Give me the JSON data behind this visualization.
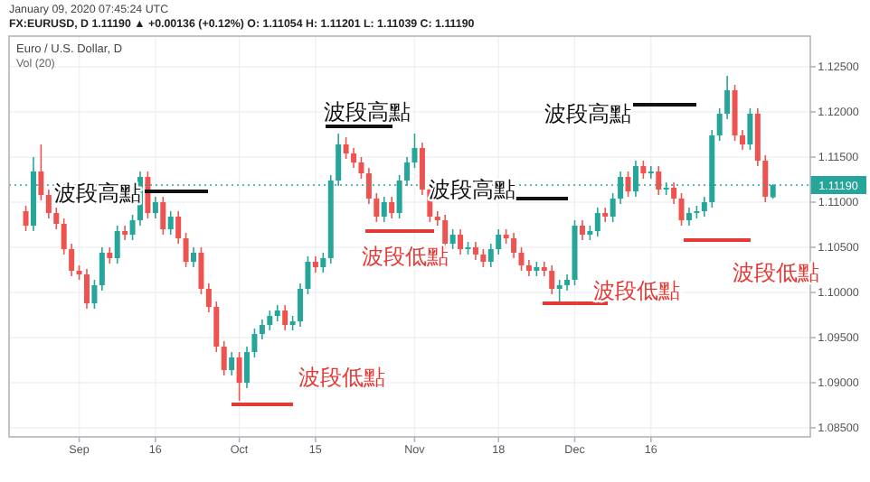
{
  "chart_data": {
    "type": "candlestick",
    "title": "Euro / U.S. Dollar, D",
    "subtitle": "FX:EURUSD, D 1.11190 ▲ +0.00136 (+0.12%) O: 1.11054 H: 1.11201 L: 1.11039 C: 1.11190",
    "categories": [
      null,
      null,
      null,
      null,
      null,
      null,
      null,
      "Sep",
      null,
      null,
      null,
      null,
      null,
      null,
      null,
      null,
      null,
      "16",
      null,
      null,
      null,
      null,
      null,
      null,
      null,
      null,
      null,
      null,
      "Oct",
      null,
      null,
      null,
      null,
      null,
      null,
      null,
      null,
      null,
      "15",
      null,
      null,
      null,
      null,
      null,
      null,
      null,
      null,
      null,
      null,
      null,
      null,
      "Nov",
      null,
      null,
      null,
      null,
      null,
      null,
      null,
      null,
      null,
      null,
      "18",
      null,
      null,
      null,
      null,
      null,
      null,
      null,
      null,
      null,
      "Dec",
      null,
      null,
      null,
      null,
      null,
      null,
      null,
      null,
      null,
      "16",
      null,
      null,
      null,
      null,
      null,
      null,
      null,
      null,
      null,
      null,
      null,
      null,
      null,
      null,
      null,
      null
    ],
    "ohlc": [
      [
        1.109,
        1.1096,
        1.1068,
        1.1074
      ],
      [
        1.1074,
        1.115,
        1.1068,
        1.1134
      ],
      [
        1.1134,
        1.1164,
        1.1102,
        1.1108
      ],
      [
        1.1108,
        1.1114,
        1.1082,
        1.1088
      ],
      [
        1.1088,
        1.1094,
        1.107,
        1.1076
      ],
      [
        1.1076,
        1.1082,
        1.1042,
        1.1048
      ],
      [
        1.1048,
        1.1054,
        1.1018,
        1.1024
      ],
      [
        1.1024,
        1.103,
        1.1014,
        1.102
      ],
      [
        1.102,
        1.1026,
        1.0982,
        1.0988
      ],
      [
        1.0988,
        1.1014,
        1.0982,
        1.1008
      ],
      [
        1.1008,
        1.105,
        1.1002,
        1.1044
      ],
      [
        1.1044,
        1.105,
        1.1032,
        1.1038
      ],
      [
        1.1038,
        1.1074,
        1.1032,
        1.1068
      ],
      [
        1.1068,
        1.1074,
        1.1058,
        1.1064
      ],
      [
        1.1064,
        1.1086,
        1.1058,
        1.108
      ],
      [
        1.108,
        1.1134,
        1.1074,
        1.1128
      ],
      [
        1.1128,
        1.1134,
        1.1082,
        1.1088
      ],
      [
        1.1088,
        1.1106,
        1.1082,
        1.11
      ],
      [
        1.11,
        1.1106,
        1.1064,
        1.107
      ],
      [
        1.107,
        1.109,
        1.1064,
        1.1084
      ],
      [
        1.1084,
        1.109,
        1.1054,
        1.106
      ],
      [
        1.106,
        1.1066,
        1.1028,
        1.1034
      ],
      [
        1.1034,
        1.105,
        1.1028,
        1.1044
      ],
      [
        1.1044,
        1.105,
        1.0998,
        1.1004
      ],
      [
        1.1004,
        1.101,
        1.0978,
        1.0984
      ],
      [
        1.0984,
        1.099,
        1.0934,
        1.094
      ],
      [
        1.094,
        1.0946,
        1.0908,
        1.0914
      ],
      [
        1.0914,
        1.0934,
        1.0908,
        1.0928
      ],
      [
        1.0928,
        1.0934,
        1.088,
        1.09
      ],
      [
        1.09,
        1.094,
        1.0894,
        1.0934
      ],
      [
        1.0934,
        1.096,
        1.0928,
        1.0954
      ],
      [
        1.0954,
        1.097,
        1.0948,
        1.0964
      ],
      [
        1.0964,
        1.098,
        1.0958,
        1.0974
      ],
      [
        1.0974,
        1.0986,
        1.0968,
        1.098
      ],
      [
        1.098,
        1.0986,
        1.0958,
        1.0964
      ],
      [
        1.0964,
        1.0974,
        1.0958,
        1.0968
      ],
      [
        1.0968,
        1.101,
        1.0962,
        1.1004
      ],
      [
        1.1004,
        1.104,
        1.0998,
        1.1034
      ],
      [
        1.1034,
        1.104,
        1.1022,
        1.1028
      ],
      [
        1.1028,
        1.1044,
        1.1022,
        1.1038
      ],
      [
        1.1038,
        1.113,
        1.1032,
        1.1124
      ],
      [
        1.1124,
        1.1176,
        1.1118,
        1.1164
      ],
      [
        1.1164,
        1.1172,
        1.1148,
        1.1154
      ],
      [
        1.1154,
        1.116,
        1.1138,
        1.1144
      ],
      [
        1.1144,
        1.115,
        1.1126,
        1.1132
      ],
      [
        1.1132,
        1.1138,
        1.1098,
        1.1104
      ],
      [
        1.1104,
        1.111,
        1.1078,
        1.1084
      ],
      [
        1.1084,
        1.1106,
        1.1078,
        1.11
      ],
      [
        1.11,
        1.1106,
        1.1082,
        1.1088
      ],
      [
        1.1088,
        1.113,
        1.1082,
        1.1124
      ],
      [
        1.1124,
        1.115,
        1.1118,
        1.1144
      ],
      [
        1.1144,
        1.1176,
        1.1138,
        1.116
      ],
      [
        1.116,
        1.1166,
        1.1108,
        1.1114
      ],
      [
        1.1114,
        1.112,
        1.1078,
        1.1084
      ],
      [
        1.1084,
        1.109,
        1.1074,
        1.108
      ],
      [
        1.108,
        1.1086,
        1.1048,
        1.1054
      ],
      [
        1.1054,
        1.107,
        1.1048,
        1.1064
      ],
      [
        1.1064,
        1.107,
        1.1042,
        1.1048
      ],
      [
        1.1048,
        1.1056,
        1.1042,
        1.105
      ],
      [
        1.105,
        1.1056,
        1.1036,
        1.1042
      ],
      [
        1.1042,
        1.1048,
        1.1028,
        1.1034
      ],
      [
        1.1034,
        1.1054,
        1.1028,
        1.1048
      ],
      [
        1.1048,
        1.107,
        1.1042,
        1.1064
      ],
      [
        1.1064,
        1.107,
        1.1054,
        1.106
      ],
      [
        1.106,
        1.1066,
        1.1038,
        1.1044
      ],
      [
        1.1044,
        1.105,
        1.1024,
        1.103
      ],
      [
        1.103,
        1.1036,
        1.1018,
        1.1024
      ],
      [
        1.1024,
        1.1034,
        1.1018,
        1.1028
      ],
      [
        1.1028,
        1.1034,
        1.1018,
        1.1024
      ],
      [
        1.1024,
        1.103,
        1.0998,
        1.1004
      ],
      [
        1.1004,
        1.1014,
        1.099,
        1.1008
      ],
      [
        1.1008,
        1.102,
        1.1002,
        1.1014
      ],
      [
        1.1014,
        1.108,
        1.1008,
        1.1074
      ],
      [
        1.1074,
        1.108,
        1.1058,
        1.1064
      ],
      [
        1.1064,
        1.1074,
        1.1058,
        1.1068
      ],
      [
        1.1068,
        1.1094,
        1.1062,
        1.1088
      ],
      [
        1.1088,
        1.1094,
        1.1078,
        1.1084
      ],
      [
        1.1084,
        1.111,
        1.1078,
        1.1104
      ],
      [
        1.1104,
        1.1134,
        1.1098,
        1.1128
      ],
      [
        1.1128,
        1.1134,
        1.1106,
        1.1112
      ],
      [
        1.1112,
        1.1146,
        1.1106,
        1.114
      ],
      [
        1.114,
        1.1146,
        1.1126,
        1.1132
      ],
      [
        1.1132,
        1.114,
        1.1126,
        1.1134
      ],
      [
        1.1134,
        1.114,
        1.1108,
        1.1114
      ],
      [
        1.1114,
        1.1122,
        1.1108,
        1.1116
      ],
      [
        1.1116,
        1.1122,
        1.1098,
        1.1104
      ],
      [
        1.1104,
        1.111,
        1.1074,
        1.108
      ],
      [
        1.108,
        1.1094,
        1.1074,
        1.1088
      ],
      [
        1.1088,
        1.1096,
        1.1082,
        1.109
      ],
      [
        1.109,
        1.1106,
        1.1084,
        1.11
      ],
      [
        1.11,
        1.118,
        1.1094,
        1.1174
      ],
      [
        1.1174,
        1.1204,
        1.1168,
        1.1198
      ],
      [
        1.1198,
        1.124,
        1.1192,
        1.1224
      ],
      [
        1.1224,
        1.123,
        1.1168,
        1.1174
      ],
      [
        1.1174,
        1.118,
        1.1158,
        1.1164
      ],
      [
        1.1164,
        1.1204,
        1.1158,
        1.1198
      ],
      [
        1.1198,
        1.1204,
        1.114,
        1.1146
      ],
      [
        1.1146,
        1.1152,
        1.11,
        1.1106
      ],
      [
        1.11054,
        1.11201,
        1.11039,
        1.1119
      ]
    ],
    "colors": [
      "#ef5350",
      "#26a69a",
      "#ef5350",
      "#ef5350",
      "#ef5350",
      "#ef5350",
      "#ef5350",
      "#ef5350",
      "#ef5350",
      "#26a69a",
      "#26a69a",
      "#ef5350",
      "#26a69a",
      "#ef5350",
      "#26a69a",
      "#26a69a",
      "#ef5350",
      "#26a69a",
      "#ef5350",
      "#26a69a",
      "#ef5350",
      "#ef5350",
      "#26a69a",
      "#ef5350",
      "#ef5350",
      "#ef5350",
      "#ef5350",
      "#26a69a",
      "#ef5350",
      "#26a69a",
      "#26a69a",
      "#26a69a",
      "#26a69a",
      "#26a69a",
      "#ef5350",
      "#26a69a",
      "#26a69a",
      "#26a69a",
      "#ef5350",
      "#26a69a",
      "#26a69a",
      "#26a69a",
      "#ef5350",
      "#ef5350",
      "#ef5350",
      "#ef5350",
      "#ef5350",
      "#26a69a",
      "#ef5350",
      "#26a69a",
      "#26a69a",
      "#26a69a",
      "#ef5350",
      "#ef5350",
      "#ef5350",
      "#ef5350",
      "#26a69a",
      "#ef5350",
      "#26a69a",
      "#ef5350",
      "#ef5350",
      "#26a69a",
      "#26a69a",
      "#ef5350",
      "#ef5350",
      "#ef5350",
      "#ef5350",
      "#26a69a",
      "#ef5350",
      "#ef5350",
      "#26a69a",
      "#26a69a",
      "#26a69a",
      "#ef5350",
      "#26a69a",
      "#26a69a",
      "#ef5350",
      "#26a69a",
      "#26a69a",
      "#ef5350",
      "#26a69a",
      "#ef5350",
      "#26a69a",
      "#ef5350",
      "#26a69a",
      "#ef5350",
      "#ef5350",
      "#26a69a",
      "#26a69a",
      "#26a69a",
      "#26a69a",
      "#26a69a",
      "#26a69a",
      "#ef5350",
      "#ef5350",
      "#26a69a",
      "#ef5350",
      "#ef5350",
      "#26a69a"
    ],
    "ylim": [
      1.084,
      1.1284
    ],
    "yticks": [
      {
        "value": 1.085,
        "label": "1.08500"
      },
      {
        "value": 1.09,
        "label": "1.09000"
      },
      {
        "value": 1.095,
        "label": "1.09500"
      },
      {
        "value": 1.1,
        "label": "1.10000"
      },
      {
        "value": 1.105,
        "label": "1.10500"
      },
      {
        "value": 1.11,
        "label": "1.11000"
      },
      {
        "value": 1.115,
        "label": "1.11500"
      },
      {
        "value": 1.12,
        "label": "1.12000"
      },
      {
        "value": 1.125,
        "label": "1.12500"
      }
    ],
    "grid": true,
    "ref_lines": [
      {
        "axis": "y",
        "value": 1.1119,
        "label": "1.11190",
        "color": "#26a69a",
        "line_style": "dotted"
      }
    ],
    "annotations": [
      "January 09, 2020 07:45:24 UTC",
      "Vol (20)",
      "波段高點",
      "波段高點",
      "波段高點",
      "波段高點",
      "波段低點",
      "波段低點",
      "波段低點",
      "波段低點"
    ]
  }
}
